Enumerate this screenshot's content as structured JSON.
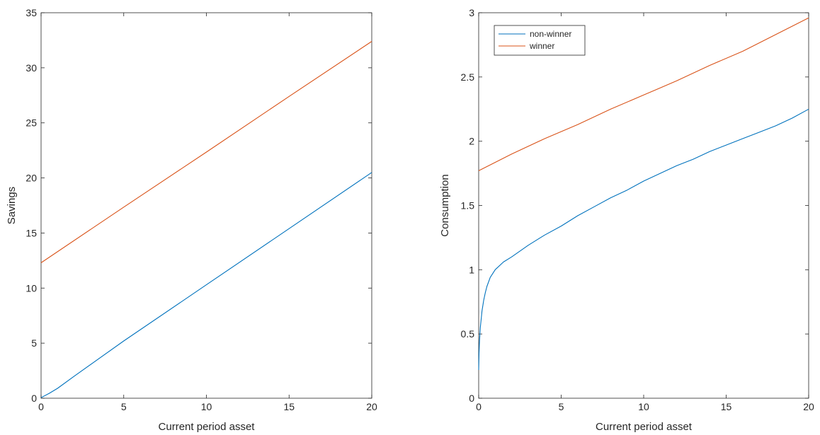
{
  "colors": {
    "series_1": "#0072BD",
    "series_2": "#D95319",
    "axis": "#262626",
    "background": "#ffffff"
  },
  "chart_data": [
    {
      "type": "line",
      "title": "",
      "xlabel": "Current period asset",
      "ylabel": "Savings",
      "xlim": [
        0,
        20
      ],
      "ylim": [
        0,
        35
      ],
      "xticks": [
        0,
        5,
        10,
        15,
        20
      ],
      "yticks": [
        0,
        5,
        10,
        15,
        20,
        25,
        30,
        35
      ],
      "grid": false,
      "legend": null,
      "series": [
        {
          "x": [
            0,
            0.5,
            1,
            2,
            5,
            10,
            15,
            20
          ],
          "y": [
            0.05,
            0.45,
            0.9,
            2.0,
            5.2,
            10.3,
            15.4,
            20.5
          ],
          "color": "#0072BD"
        },
        {
          "x": [
            0,
            5,
            10,
            15,
            20
          ],
          "y": [
            12.3,
            17.35,
            22.35,
            27.4,
            32.4
          ],
          "color": "#D95319"
        }
      ]
    },
    {
      "type": "line",
      "title": "",
      "xlabel": "Current period asset",
      "ylabel": "Consumption",
      "xlim": [
        0,
        20
      ],
      "ylim": [
        0,
        3
      ],
      "xticks": [
        0,
        5,
        10,
        15,
        20
      ],
      "yticks": [
        0,
        0.5,
        1,
        1.5,
        2,
        2.5,
        3
      ],
      "grid": false,
      "legend": "top-left",
      "series": [
        {
          "name": "non-winner",
          "x": [
            0,
            0.02,
            0.05,
            0.1,
            0.2,
            0.3,
            0.4,
            0.5,
            0.7,
            1.0,
            1.5,
            2,
            3,
            4,
            5,
            6,
            7,
            8,
            9,
            10,
            11,
            12,
            13,
            14,
            15,
            16,
            17,
            18,
            19,
            20
          ],
          "y": [
            0.22,
            0.35,
            0.45,
            0.55,
            0.68,
            0.76,
            0.82,
            0.87,
            0.94,
            1.0,
            1.06,
            1.1,
            1.19,
            1.27,
            1.34,
            1.42,
            1.49,
            1.56,
            1.62,
            1.69,
            1.75,
            1.81,
            1.86,
            1.92,
            1.97,
            2.02,
            2.07,
            2.12,
            2.18,
            2.25
          ],
          "color": "#0072BD"
        },
        {
          "name": "winner",
          "x": [
            0,
            2,
            4,
            6,
            8,
            10,
            12,
            14,
            16,
            18,
            20
          ],
          "y": [
            1.77,
            1.9,
            2.02,
            2.13,
            2.25,
            2.36,
            2.47,
            2.59,
            2.7,
            2.83,
            2.96
          ],
          "color": "#D95319"
        }
      ]
    }
  ]
}
